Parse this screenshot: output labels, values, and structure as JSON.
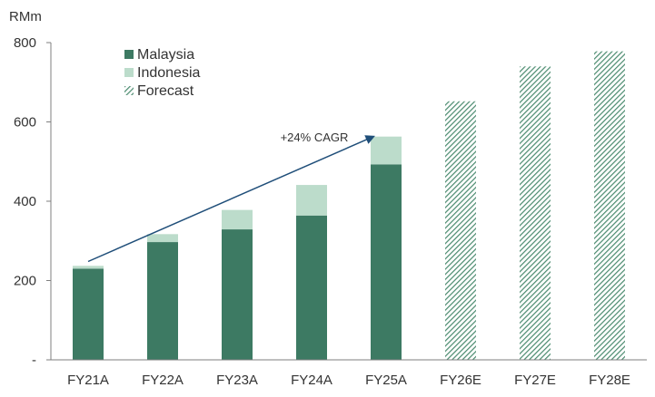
{
  "chart_data": {
    "type": "bar",
    "stacked": true,
    "title": "",
    "unit_label": "RMm",
    "xlabel": "",
    "ylabel": "",
    "ylim": [
      0,
      800
    ],
    "y_ticks": [
      {
        "value": 0,
        "label": "-"
      },
      {
        "value": 200,
        "label": "200"
      },
      {
        "value": 400,
        "label": "400"
      },
      {
        "value": 600,
        "label": "600"
      },
      {
        "value": 800,
        "label": "800"
      }
    ],
    "grid": false,
    "legend_position": "top-left",
    "categories": [
      "FY21A",
      "FY22A",
      "FY23A",
      "FY24A",
      "FY25A",
      "FY26E",
      "FY27E",
      "FY28E"
    ],
    "series": [
      {
        "name": "Malaysia",
        "key": "malaysia",
        "color": "#3d7a63",
        "pattern": "solid",
        "values": [
          230,
          297,
          329,
          364,
          493,
          null,
          null,
          null
        ]
      },
      {
        "name": "Indonesia",
        "key": "indonesia",
        "color": "#bcdccb",
        "pattern": "solid",
        "values": [
          7,
          20,
          49,
          77,
          70,
          null,
          null,
          null
        ]
      },
      {
        "name": "Forecast",
        "key": "forecast",
        "color": "#4a8a6e",
        "pattern": "hatch",
        "values": [
          null,
          null,
          null,
          null,
          null,
          652,
          740,
          778
        ]
      }
    ],
    "annotations": [
      {
        "text": "+24% CAGR",
        "type": "arrow",
        "from": {
          "x": "FY21A",
          "y": 248
        },
        "to": {
          "x": "FY25A",
          "y": 563
        },
        "color": "#1f4e79"
      }
    ]
  }
}
